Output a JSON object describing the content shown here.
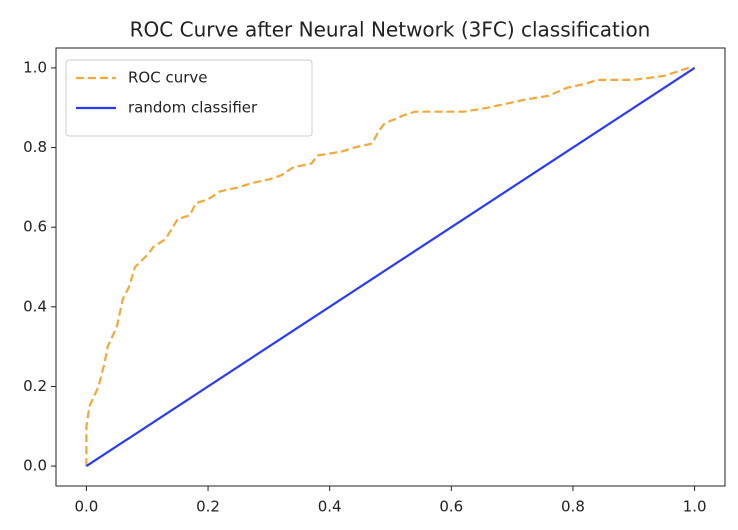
{
  "chart_data": {
    "type": "line",
    "title": "ROC Curve after Neural Network (3FC) classification",
    "xlim": [
      -0.05,
      1.05
    ],
    "ylim": [
      -0.05,
      1.05
    ],
    "xticks": [
      {
        "value": 0,
        "label": "0.0"
      },
      0.2,
      0.4,
      0.6,
      0.8,
      {
        "value": 1,
        "label": "1.0"
      }
    ],
    "yticks": [
      {
        "value": 0,
        "label": "0.0"
      },
      0.2,
      0.4,
      0.6,
      0.8,
      {
        "value": 1,
        "label": "1.0"
      }
    ],
    "legend": "upper left",
    "series": [
      {
        "name": "ROC curve",
        "color": "#f5a83a",
        "linestyle": "--",
        "x": [
          0,
          0,
          0.005,
          0.02,
          0.03,
          0.035,
          0.05,
          0.06,
          0.07,
          0.08,
          0.1,
          0.11,
          0.13,
          0.15,
          0.17,
          0.18,
          0.2,
          0.22,
          0.25,
          0.27,
          0.3,
          0.32,
          0.34,
          0.37,
          0.38,
          0.42,
          0.44,
          0.47,
          0.48,
          0.49,
          0.52,
          0.54,
          0.62,
          0.66,
          0.72,
          0.76,
          0.79,
          0.82,
          0.84,
          0.9,
          0.95,
          0.99,
          1
        ],
        "values": [
          0,
          0.1,
          0.15,
          0.2,
          0.26,
          0.3,
          0.35,
          0.42,
          0.45,
          0.5,
          0.53,
          0.55,
          0.57,
          0.62,
          0.63,
          0.66,
          0.67,
          0.69,
          0.7,
          0.71,
          0.72,
          0.73,
          0.75,
          0.76,
          0.78,
          0.79,
          0.8,
          0.81,
          0.84,
          0.86,
          0.88,
          0.89,
          0.89,
          0.9,
          0.92,
          0.93,
          0.95,
          0.96,
          0.97,
          0.97,
          0.98,
          1,
          1
        ]
      },
      {
        "name": "random classifier",
        "color": "#2a3cf2",
        "linestyle": "-",
        "x": [
          0,
          1
        ],
        "values": [
          0,
          1
        ]
      }
    ]
  }
}
